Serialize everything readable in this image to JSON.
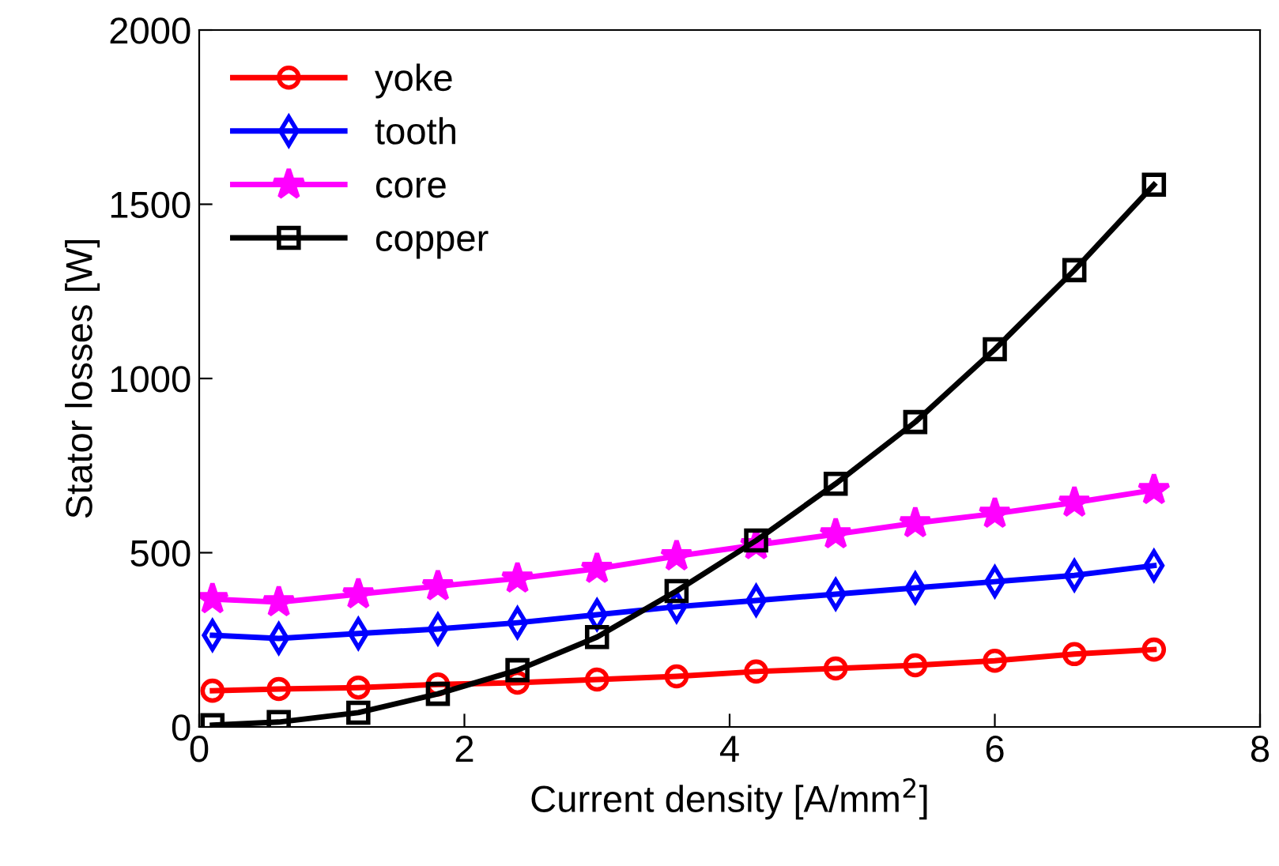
{
  "chart_data": {
    "type": "line",
    "xlabel": "Current density [A/mm$^{2}$]",
    "ylabel": "Stator losses [W]",
    "x": [
      0.1,
      0.6,
      1.2,
      1.8,
      2.4,
      3.0,
      3.6,
      4.2,
      4.8,
      5.4,
      6.0,
      6.6,
      7.2
    ],
    "series": [
      {
        "name": "yoke",
        "color": "#ff0000",
        "marker": "circle",
        "values": [
          104,
          109,
          113,
          122,
          127,
          136,
          145,
          159,
          168,
          177,
          190,
          209,
          222
        ]
      },
      {
        "name": "tooth",
        "color": "#0000ff",
        "marker": "diamond",
        "values": [
          263,
          254,
          268,
          281,
          299,
          322,
          345,
          363,
          381,
          399,
          417,
          435,
          463
        ]
      },
      {
        "name": "core",
        "color": "#ff00ff",
        "marker": "star",
        "values": [
          367,
          358,
          381,
          404,
          426,
          454,
          490,
          522,
          553,
          585,
          612,
          644,
          680
        ]
      },
      {
        "name": "copper",
        "color": "#000000",
        "marker": "square",
        "values": [
          5,
          14,
          41,
          95,
          163,
          258,
          390,
          535,
          698,
          875,
          1084,
          1311,
          1556
        ]
      }
    ],
    "xlim": [
      0,
      8
    ],
    "xticks": [
      0,
      2,
      4,
      6,
      8
    ],
    "ylim": [
      0,
      2000
    ],
    "yticks": [
      0,
      500,
      1000,
      1500,
      2000
    ],
    "grid": false,
    "legend": "top left",
    "line_style": "solid"
  }
}
